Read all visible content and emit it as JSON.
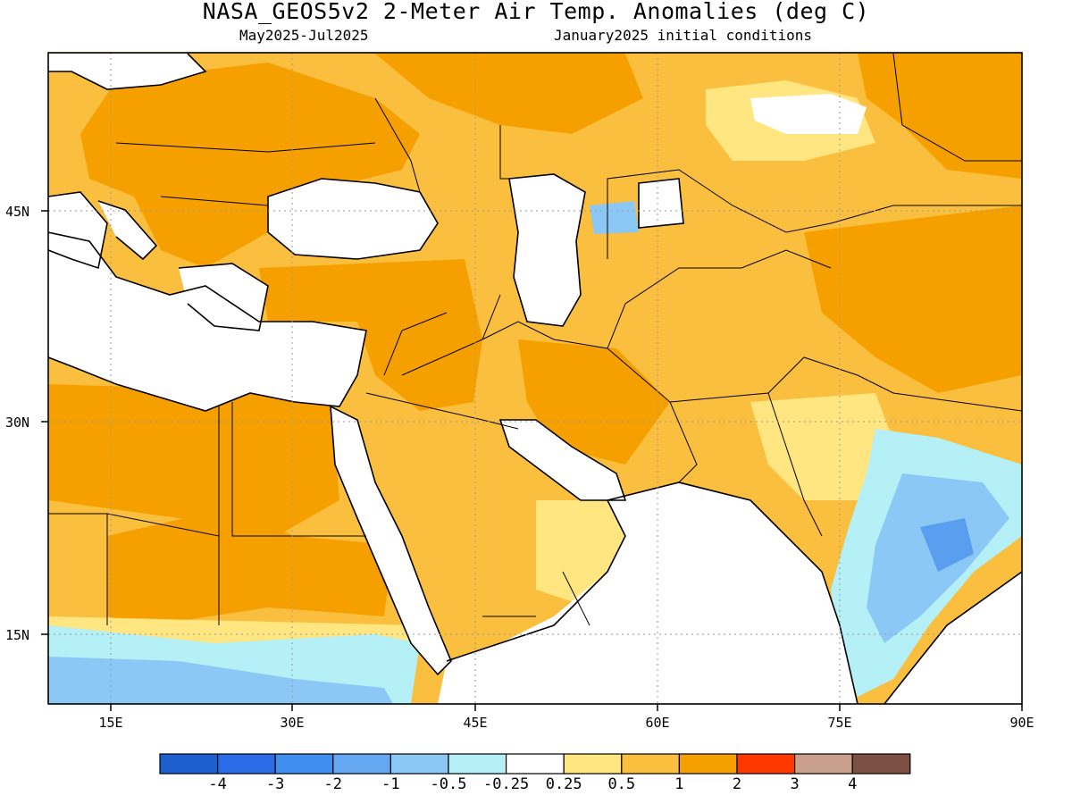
{
  "header": {
    "title": "NASA_GEOS5v2 2-Meter Air Temp. Anomalies (deg C)",
    "period": "May2025-Jul2025",
    "init": "January2025 initial conditions"
  },
  "map": {
    "lon_ticks": [
      "15E",
      "30E",
      "45E",
      "60E",
      "75E",
      "90E"
    ],
    "lat_ticks": [
      "45N",
      "30N",
      "15N"
    ],
    "colors": {
      "ocean": "#ffffff",
      "anom_0_25_0_5": "#ffe680",
      "anom_0_5_1": "#fbbf3f",
      "anom_1_2": "#f6a000",
      "anom_neg_0_25_0_5": "#b4f0f5",
      "anom_neg_0_5_1": "#8cc8f5",
      "anom_neg_1_2": "#5a9ef0",
      "grid": "#999999"
    }
  },
  "colorbar": {
    "bins": [
      "#1d5fcf",
      "#2b6be8",
      "#3f8ef0",
      "#64a8f2",
      "#8cc8f5",
      "#b4f0f5",
      "#ffffff",
      "#ffe680",
      "#fbbf3f",
      "#f6a000",
      "#ff3800",
      "#c8a08c",
      "#7d5046"
    ],
    "labels": [
      "-4",
      "-3",
      "-2",
      "-1",
      "-0.5",
      "-0.25",
      "0.25",
      "0.5",
      "1",
      "2",
      "3",
      "4"
    ]
  }
}
